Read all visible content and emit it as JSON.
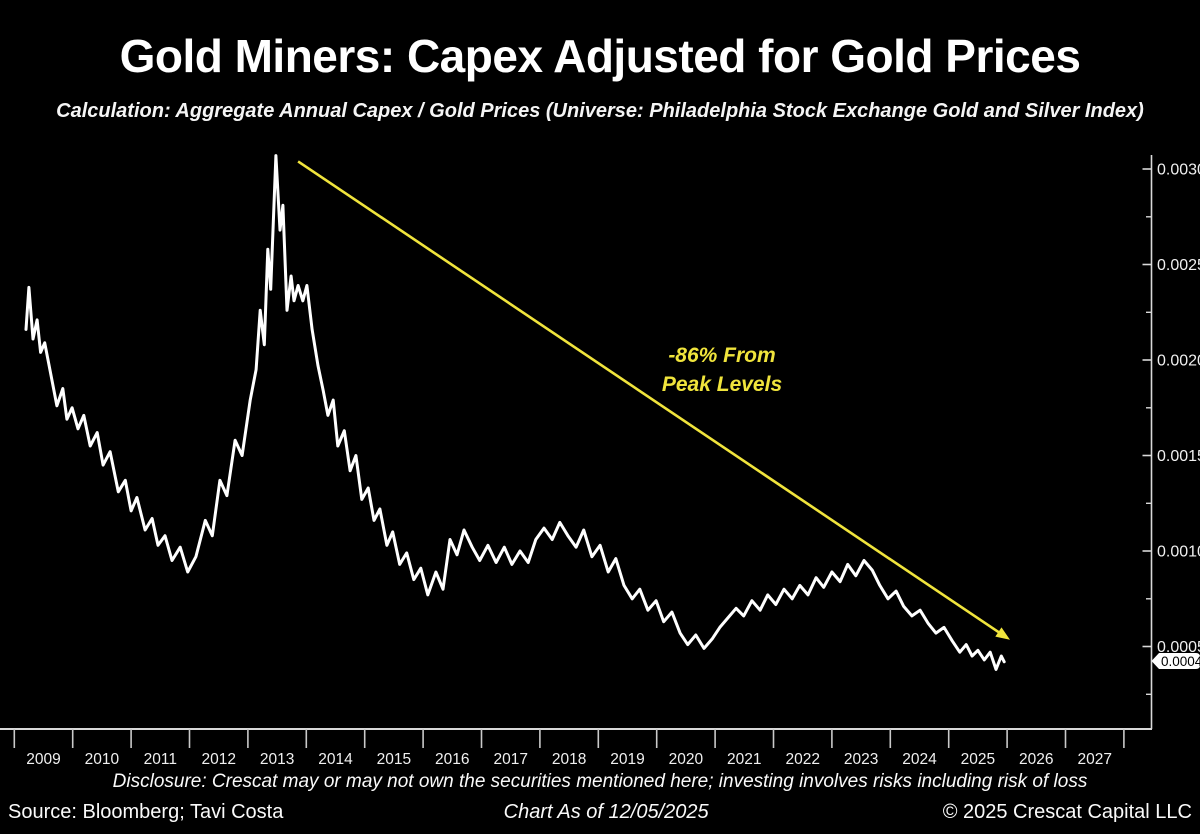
{
  "header": {
    "title": "Gold Miners: Capex Adjusted for Gold Prices",
    "subtitle": "Calculation: Aggregate Annual Capex / Gold Prices (Universe: Philadelphia Stock Exchange Gold and Silver Index)"
  },
  "annotation": {
    "line1": "-86% From",
    "line2": "Peak Levels"
  },
  "footer": {
    "disclosure": "Disclosure: Crescat may or may not own the securities mentioned here; investing involves risks including risk of loss",
    "source": "Source: Bloomberg; Tavi Costa",
    "as_of": "Chart As of 12/05/2025",
    "copyright": "© 2025 Crescat Capital LLC"
  },
  "colors": {
    "background": "#000000",
    "line": "#ffffff",
    "accent_yellow": "#f0e43c",
    "axis": "#d9d9d9"
  },
  "chart_data": {
    "type": "line",
    "title": "Gold Miners: Capex Adjusted for Gold Prices",
    "xlabel": "",
    "ylabel": "",
    "legend": "none",
    "grid": false,
    "xlim": [
      2008.79,
      2028.48
    ],
    "ylim": [
      7e-05,
      0.00307
    ],
    "x_tick_labels": [
      "2009",
      "2010",
      "2011",
      "2012",
      "2013",
      "2014",
      "2015",
      "2016",
      "2017",
      "2018",
      "2019",
      "2020",
      "2021",
      "2022",
      "2023",
      "2024",
      "2025",
      "2026",
      "2027"
    ],
    "y_ticks": [
      0.003,
      0.0025,
      0.002,
      0.0015,
      0.001,
      0.0005
    ],
    "y_tick_labels": [
      "0.0030",
      "0.0025",
      "0.0020",
      "0.0015",
      "0.0010",
      "0.0005"
    ],
    "y_minor_ticks": [
      0.00275,
      0.00225,
      0.00175,
      0.00125,
      0.00075,
      0.00025
    ],
    "last_value_label": "0.0004",
    "annotation_text": [
      "-86% From",
      "Peak Levels"
    ],
    "arrow": {
      "from": [
        2013.86,
        0.00304
      ],
      "to": [
        2026.05,
        0.000535
      ]
    },
    "series": [
      {
        "name": "Aggregate Annual Capex / Gold Prices",
        "points": [
          [
            2009.2,
            0.00216
          ],
          [
            2009.25,
            0.00238
          ],
          [
            2009.32,
            0.00211
          ],
          [
            2009.39,
            0.00221
          ],
          [
            2009.45,
            0.00204
          ],
          [
            2009.52,
            0.00209
          ],
          [
            2009.61,
            0.00195
          ],
          [
            2009.73,
            0.00176
          ],
          [
            2009.83,
            0.00185
          ],
          [
            2009.9,
            0.00169
          ],
          [
            2009.99,
            0.00175
          ],
          [
            2010.09,
            0.00164
          ],
          [
            2010.19,
            0.00171
          ],
          [
            2010.3,
            0.00155
          ],
          [
            2010.42,
            0.00162
          ],
          [
            2010.52,
            0.00145
          ],
          [
            2010.64,
            0.00152
          ],
          [
            2010.78,
            0.00131
          ],
          [
            2010.9,
            0.00137
          ],
          [
            2011.0,
            0.00121
          ],
          [
            2011.1,
            0.00128
          ],
          [
            2011.24,
            0.00111
          ],
          [
            2011.36,
            0.00117
          ],
          [
            2011.46,
            0.00103
          ],
          [
            2011.58,
            0.00108
          ],
          [
            2011.7,
            0.00095
          ],
          [
            2011.84,
            0.00102
          ],
          [
            2011.97,
            0.00089
          ],
          [
            2012.11,
            0.00097
          ],
          [
            2012.27,
            0.00116
          ],
          [
            2012.39,
            0.00108
          ],
          [
            2012.52,
            0.00137
          ],
          [
            2012.64,
            0.00129
          ],
          [
            2012.78,
            0.00158
          ],
          [
            2012.9,
            0.0015
          ],
          [
            2013.04,
            0.00179
          ],
          [
            2013.14,
            0.00195
          ],
          [
            2013.21,
            0.00226
          ],
          [
            2013.28,
            0.00208
          ],
          [
            2013.34,
            0.00258
          ],
          [
            2013.39,
            0.00237
          ],
          [
            2013.48,
            0.00307
          ],
          [
            2013.55,
            0.00268
          ],
          [
            2013.6,
            0.00281
          ],
          [
            2013.67,
            0.00226
          ],
          [
            2013.74,
            0.00244
          ],
          [
            2013.79,
            0.00231
          ],
          [
            2013.86,
            0.00239
          ],
          [
            2013.94,
            0.00231
          ],
          [
            2014.01,
            0.00239
          ],
          [
            2014.1,
            0.00216
          ],
          [
            2014.2,
            0.00197
          ],
          [
            2014.29,
            0.00184
          ],
          [
            2014.37,
            0.00171
          ],
          [
            2014.46,
            0.00179
          ],
          [
            2014.54,
            0.00155
          ],
          [
            2014.65,
            0.00163
          ],
          [
            2014.75,
            0.00142
          ],
          [
            2014.85,
            0.0015
          ],
          [
            2014.95,
            0.00127
          ],
          [
            2015.06,
            0.00133
          ],
          [
            2015.16,
            0.00116
          ],
          [
            2015.26,
            0.00122
          ],
          [
            2015.38,
            0.00103
          ],
          [
            2015.48,
            0.0011
          ],
          [
            2015.6,
            0.00093
          ],
          [
            2015.72,
            0.00099
          ],
          [
            2015.84,
            0.00085
          ],
          [
            2015.96,
            0.00091
          ],
          [
            2016.08,
            0.00077
          ],
          [
            2016.22,
            0.00089
          ],
          [
            2016.34,
            0.0008
          ],
          [
            2016.46,
            0.00106
          ],
          [
            2016.58,
            0.00098
          ],
          [
            2016.7,
            0.00111
          ],
          [
            2016.84,
            0.00102
          ],
          [
            2016.97,
            0.00095
          ],
          [
            2017.11,
            0.00103
          ],
          [
            2017.25,
            0.00094
          ],
          [
            2017.39,
            0.00102
          ],
          [
            2017.52,
            0.00093
          ],
          [
            2017.66,
            0.001
          ],
          [
            2017.8,
            0.00094
          ],
          [
            2017.93,
            0.00106
          ],
          [
            2018.07,
            0.00112
          ],
          [
            2018.21,
            0.00106
          ],
          [
            2018.34,
            0.00115
          ],
          [
            2018.48,
            0.00108
          ],
          [
            2018.62,
            0.00102
          ],
          [
            2018.75,
            0.00111
          ],
          [
            2018.89,
            0.00097
          ],
          [
            2019.03,
            0.00103
          ],
          [
            2019.17,
            0.00089
          ],
          [
            2019.3,
            0.00096
          ],
          [
            2019.44,
            0.00082
          ],
          [
            2019.58,
            0.00075
          ],
          [
            2019.71,
            0.0008
          ],
          [
            2019.85,
            0.00069
          ],
          [
            2019.99,
            0.00074
          ],
          [
            2020.12,
            0.00063
          ],
          [
            2020.26,
            0.00068
          ],
          [
            2020.4,
            0.00057
          ],
          [
            2020.53,
            0.00051
          ],
          [
            2020.67,
            0.00056
          ],
          [
            2020.81,
            0.00049
          ],
          [
            2020.95,
            0.00054
          ],
          [
            2021.08,
            0.0006
          ],
          [
            2021.22,
            0.00065
          ],
          [
            2021.36,
            0.0007
          ],
          [
            2021.49,
            0.00066
          ],
          [
            2021.63,
            0.00074
          ],
          [
            2021.77,
            0.00069
          ],
          [
            2021.9,
            0.00077
          ],
          [
            2022.04,
            0.00072
          ],
          [
            2022.18,
            0.0008
          ],
          [
            2022.32,
            0.00075
          ],
          [
            2022.45,
            0.00082
          ],
          [
            2022.59,
            0.00077
          ],
          [
            2022.73,
            0.00086
          ],
          [
            2022.86,
            0.00081
          ],
          [
            2023.0,
            0.00089
          ],
          [
            2023.14,
            0.00084
          ],
          [
            2023.27,
            0.00093
          ],
          [
            2023.41,
            0.00087
          ],
          [
            2023.55,
            0.00095
          ],
          [
            2023.69,
            0.0009
          ],
          [
            2023.82,
            0.00082
          ],
          [
            2023.96,
            0.00075
          ],
          [
            2024.1,
            0.00079
          ],
          [
            2024.23,
            0.00071
          ],
          [
            2024.37,
            0.00066
          ],
          [
            2024.51,
            0.00069
          ],
          [
            2024.65,
            0.00062
          ],
          [
            2024.78,
            0.00057
          ],
          [
            2024.92,
            0.0006
          ],
          [
            2025.06,
            0.00053
          ],
          [
            2025.19,
            0.00047
          ],
          [
            2025.3,
            0.00051
          ],
          [
            2025.4,
            0.00045
          ],
          [
            2025.5,
            0.00048
          ],
          [
            2025.61,
            0.00043
          ],
          [
            2025.71,
            0.00047
          ],
          [
            2025.81,
            0.00038
          ],
          [
            2025.9,
            0.00045
          ],
          [
            2025.95,
            0.00042
          ]
        ]
      }
    ]
  }
}
